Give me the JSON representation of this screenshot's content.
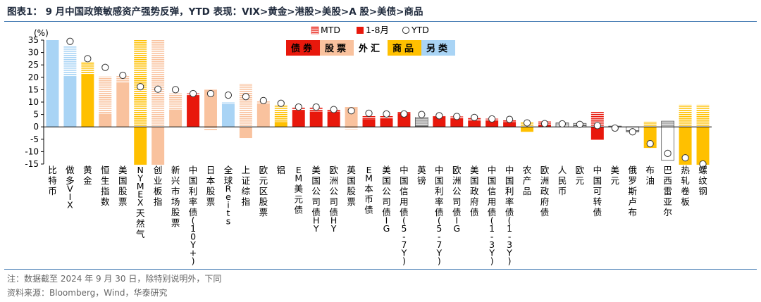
{
  "title": "图表1：  9 月中国政策敏感资产强势反弹，YTD 表现：VIX>黄金>港股>美股>A 股>美债>商品",
  "note": "注：数据截至 2024 年 9 月 30 日，除特别说明外，下同",
  "source": "资料来源：Bloomberg，Wind，华泰研究",
  "colors": {
    "blue": "#a9d4f5",
    "gold": "#ffc000",
    "peach": "#f9c29e",
    "red": "#e8180c",
    "white": "#ffffff",
    "axis": "#000000"
  },
  "legend_series": [
    {
      "key": "mtd",
      "label": "MTD"
    },
    {
      "key": "ytd18",
      "label": "1-8月"
    },
    {
      "key": "ytd",
      "label": "YTD"
    }
  ],
  "category_legend": [
    {
      "label": "债券",
      "color": "#e8180c",
      "text_color": "#000000"
    },
    {
      "label": "股票",
      "color": "#f9c29e",
      "text_color": "#000000"
    },
    {
      "label": "外汇",
      "color": "#ffffff",
      "text_color": "#000000"
    },
    {
      "label": "商品",
      "color": "#ffc000",
      "text_color": "#000000"
    },
    {
      "label": "另类",
      "color": "#a9d4f5",
      "text_color": "#000000"
    }
  ],
  "chart_data": {
    "type": "bar",
    "yunit": "(%)",
    "ylim": [
      -15,
      35
    ],
    "yticks": [
      -15,
      -10,
      -5,
      0,
      5,
      10,
      15,
      20,
      25,
      30,
      35
    ],
    "grid": false,
    "series_names": [
      "MTD",
      "1-8月",
      "YTD"
    ],
    "categories": [
      "比特币",
      "做多VIX",
      "黄金",
      "恒生指数",
      "美国股票",
      "NYMEX天然气",
      "创业板指",
      "新兴市场股票",
      "中国利率债(10Y+)",
      "日本股票",
      "全球Reits",
      "上证综指",
      "欧元区股票",
      "铝",
      "EM美元债",
      "美国公司债HY",
      "欧洲公司债HY",
      "英国股票",
      "EM本币债",
      "美国公司债IG",
      "中国信用债(5-7Y)",
      "英镑",
      "中国利率债(5-7Y)",
      "欧洲公司债IG",
      "美国政府债",
      "中国信用债(1-3Y)",
      "中国利率债(1-3Y)",
      "农产品",
      "欧洲政府债",
      "人民币",
      "欧元",
      "中国可转债",
      "美元",
      "俄罗斯卢布",
      "布油",
      "巴西雷亚尔",
      "热轧卷板",
      "螺纹钢"
    ],
    "asset_class": [
      "alt",
      "alt",
      "comm",
      "eq",
      "eq",
      "comm",
      "eq",
      "eq",
      "bond",
      "eq",
      "alt",
      "eq",
      "eq",
      "comm",
      "bond",
      "bond",
      "bond",
      "eq",
      "bond",
      "bond",
      "bond",
      "fx",
      "bond",
      "bond",
      "bond",
      "bond",
      "bond",
      "comm",
      "bond",
      "fx",
      "fx",
      "bond",
      "fx",
      "fx",
      "comm",
      "fx",
      "comm",
      "comm"
    ],
    "ytd_1_8": [
      35,
      20.5,
      21.2,
      5.3,
      18,
      -15.3,
      -15.3,
      7,
      12.8,
      15,
      9,
      -4.5,
      9.5,
      2,
      6.5,
      6.2,
      6.2,
      8,
      3,
      3.2,
      5.5,
      0.3,
      4.1,
      3.5,
      2.5,
      2.5,
      2,
      -2,
      1,
      0.8,
      0.5,
      -5.2,
      0,
      -1.5,
      -8.5,
      -13.5,
      -15.3,
      -15.3
    ],
    "mtd": [
      0,
      12,
      5,
      15,
      2.5,
      35,
      35,
      6.5,
      0.7,
      -1.5,
      1,
      17.5,
      1,
      6.9,
      1.5,
      1.6,
      0.8,
      -1,
      1.5,
      1.2,
      0.5,
      3.5,
      0.6,
      0.7,
      1.4,
      0.8,
      0.8,
      2,
      1.3,
      0.8,
      0.9,
      6,
      0.3,
      -0.5,
      2.2,
      2.3,
      9,
      9
    ],
    "ytd": [
      null,
      34.5,
      27.5,
      24,
      20.8,
      16.2,
      15.2,
      15,
      13.4,
      13.4,
      12.8,
      12.2,
      10.6,
      9.5,
      8,
      8,
      7,
      6.5,
      5.5,
      5.2,
      5.2,
      5,
      4.5,
      4.2,
      3.8,
      3.2,
      3,
      1.6,
      1.3,
      1.2,
      1,
      0.5,
      -0.5,
      -2,
      -6.8,
      -10.7,
      -12.5,
      -15
    ]
  }
}
